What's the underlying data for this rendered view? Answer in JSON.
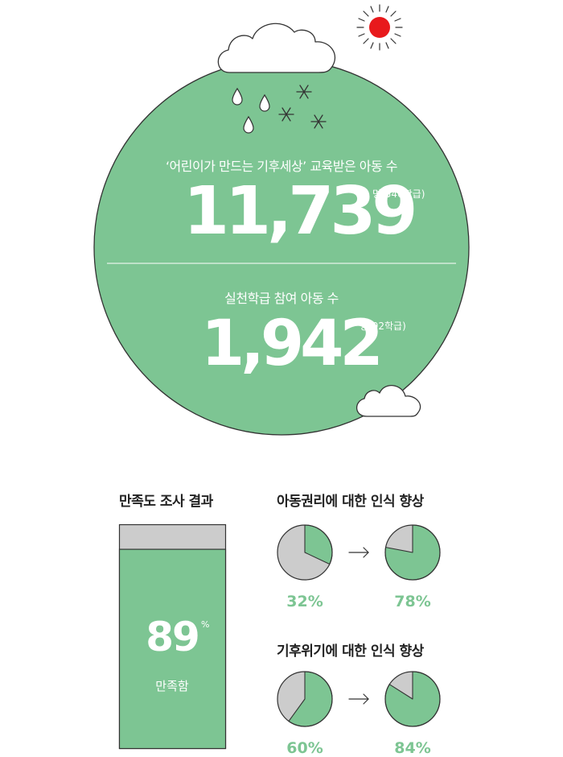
{
  "hero": {
    "educated_label": "‘어린이가 만드는 기후세상’ 교육받은 아동 수",
    "educated_count": "11,739",
    "educated_unit": "명(546학급)",
    "practice_label": "실천학급 참여 아동 수",
    "practice_count": "1,942",
    "practice_unit": "명(92학급)"
  },
  "satisfaction": {
    "title": "만족도 조사 결과",
    "value": "89",
    "percent_sign": "%",
    "label": "만족함",
    "fraction": 0.89
  },
  "rights": {
    "title": "아동권리에 대한 인식 향상",
    "before": {
      "label": "32%",
      "fraction": 0.32
    },
    "after": {
      "label": "78%",
      "fraction": 0.78
    }
  },
  "climate": {
    "title": "기후위기에 대한 인식 향상",
    "before": {
      "label": "60%",
      "fraction": 0.6
    },
    "after": {
      "label": "84%",
      "fraction": 0.84
    }
  },
  "colors": {
    "green": "#7dc593",
    "gray": "#cccccc",
    "sun": "#e8191c",
    "outline": "#333333"
  },
  "icons": [
    "sun-icon",
    "cloud-icon",
    "raindrop-icon",
    "snowflake-icon",
    "arrow-right-icon"
  ]
}
